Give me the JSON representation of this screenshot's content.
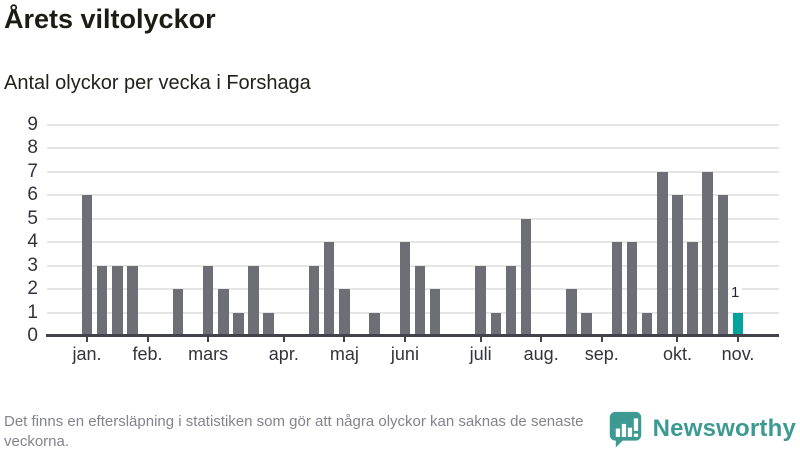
{
  "header": {
    "title": "Årets viltolyckor",
    "subtitle": "Antal olyckor per vecka i Forshaga"
  },
  "chart_data": {
    "type": "bar",
    "title": "Årets viltolyckor",
    "subtitle": "Antal olyckor per vecka i Forshaga",
    "xlabel": "",
    "ylabel": "",
    "x_unit": "week",
    "values": [
      6,
      3,
      3,
      3,
      0,
      0,
      2,
      0,
      3,
      2,
      1,
      3,
      1,
      0,
      0,
      3,
      4,
      2,
      0,
      1,
      0,
      4,
      3,
      2,
      0,
      0,
      3,
      1,
      3,
      5,
      0,
      0,
      2,
      1,
      0,
      4,
      4,
      1,
      7,
      6,
      4,
      7,
      6,
      1
    ],
    "highlight": {
      "index": 43,
      "label": "1"
    },
    "month_ticks": [
      {
        "label": "jan.",
        "week": 0
      },
      {
        "label": "feb.",
        "week": 4
      },
      {
        "label": "mars",
        "week": 8
      },
      {
        "label": "apr.",
        "week": 13
      },
      {
        "label": "maj",
        "week": 17
      },
      {
        "label": "juni",
        "week": 21
      },
      {
        "label": "juli",
        "week": 26
      },
      {
        "label": "aug.",
        "week": 30
      },
      {
        "label": "sep.",
        "week": 34
      },
      {
        "label": "okt.",
        "week": 39
      },
      {
        "label": "nov.",
        "week": 43
      }
    ],
    "yticks": [
      0,
      1,
      2,
      3,
      4,
      5,
      6,
      7,
      8,
      9
    ],
    "ylim": [
      0,
      9
    ],
    "grid": true,
    "legend": false,
    "colors": {
      "bar": "#6e6e76",
      "highlight": "#00a49c",
      "gridline": "#e5e5e5",
      "axis": "#43434c"
    }
  },
  "footer": {
    "note": "Det finns en eftersläpning i statistiken som gör att några olyckor kan saknas de senaste veckorna.",
    "brand": "Newsworthy",
    "brand_color": "#3d9a93"
  }
}
